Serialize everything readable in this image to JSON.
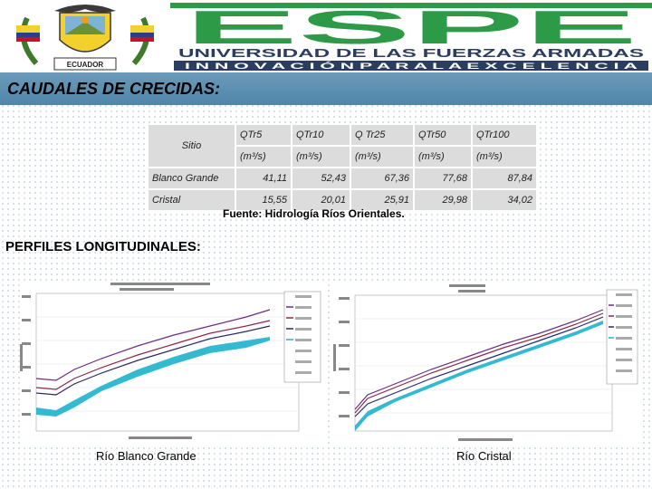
{
  "header": {
    "logo_text": "ESPE",
    "university": "UNIVERSIDAD DE LAS FUERZAS ARMADAS",
    "motto": "I N N O V A C I Ó N   P A R A   L A   E X C E L E N C I A",
    "crest_text": "ECUADOR",
    "colors": {
      "green": "#2c9a47",
      "navy": "#2c3e60",
      "red": "#c8102e",
      "yellow": "#f3d12c"
    }
  },
  "slide_title": "CAUDALES DE CRECIDAS:",
  "table": {
    "site_header": "Sitio",
    "headers": [
      "QTr5",
      "QTr10",
      "Q Tr25",
      "QTr50",
      "QTr100"
    ],
    "unit": "(m³/s)",
    "rows": [
      {
        "site": "Blanco Grande",
        "values": [
          "41,11",
          "52,43",
          "67,36",
          "77,68",
          "87,84"
        ]
      },
      {
        "site": "Cristal",
        "values": [
          "15,55",
          "20,01",
          "25,91",
          "29,98",
          "34,02"
        ]
      }
    ]
  },
  "source": "Fuente: Hidrología Ríos Orientales.",
  "section_title": "PERFILES LONGITUDINALES:",
  "profiles": [
    {
      "caption": "Río Blanco Grande",
      "legend_colors": [
        "#6a2c8a",
        "#8a2a4a",
        "#2a2a6a",
        "#1db3cc"
      ]
    },
    {
      "caption": "Río Cristal",
      "legend_colors": [
        "#6a2c8a",
        "#8a2a4a",
        "#2a2a6a",
        "#1db3cc"
      ]
    }
  ]
}
